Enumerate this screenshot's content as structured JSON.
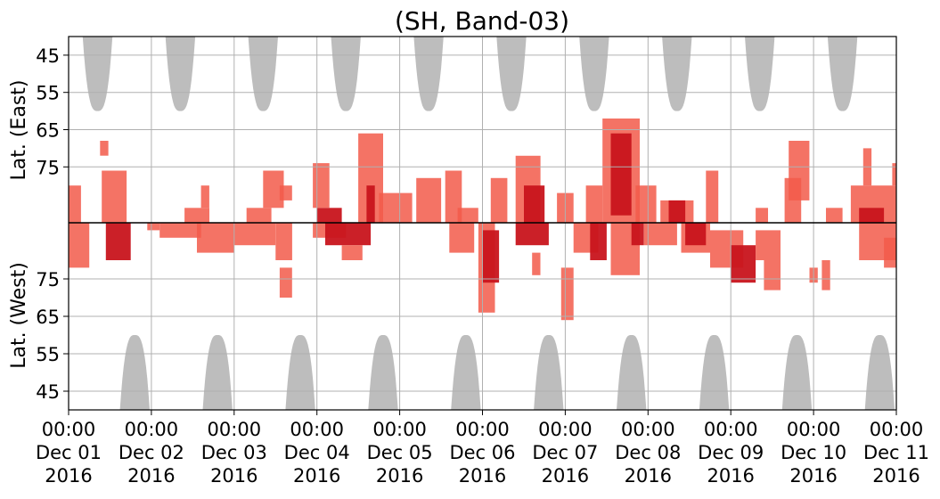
{
  "chart_data": {
    "type": "heatmap",
    "title": "(SH, Band-03)",
    "xlabel": "",
    "ylabel_top": "Lat. (East)",
    "ylabel_bottom": "Lat. (West)",
    "x_range": [
      "2016-12-01 00:00",
      "2016-12-11 00:00"
    ],
    "x_ticks": [
      {
        "time": "00:00",
        "date": "Dec 01",
        "year": "2016"
      },
      {
        "time": "00:00",
        "date": "Dec 02",
        "year": "2016"
      },
      {
        "time": "00:00",
        "date": "Dec 03",
        "year": "2016"
      },
      {
        "time": "00:00",
        "date": "Dec 04",
        "year": "2016"
      },
      {
        "time": "00:00",
        "date": "Dec 05",
        "year": "2016"
      },
      {
        "time": "00:00",
        "date": "Dec 06",
        "year": "2016"
      },
      {
        "time": "00:00",
        "date": "Dec 07",
        "year": "2016"
      },
      {
        "time": "00:00",
        "date": "Dec 08",
        "year": "2016"
      },
      {
        "time": "00:00",
        "date": "Dec 09",
        "year": "2016"
      },
      {
        "time": "00:00",
        "date": "Dec 10",
        "year": "2016"
      },
      {
        "time": "00:00",
        "date": "Dec 11",
        "year": "2016"
      }
    ],
    "y_ticks_top": [
      "45",
      "55",
      "65",
      "75"
    ],
    "y_ticks_bottom": [
      "75",
      "65",
      "55",
      "45"
    ],
    "y_range_top_lat": [
      90,
      40
    ],
    "y_range_bottom_lat": [
      90,
      40
    ],
    "grid": true,
    "colors": {
      "daylight": "#bdbdbd",
      "activity_light": "#f25a4a",
      "activity_dark": "#c8141c",
      "divider": "#000000",
      "grid": "#b0b0b0"
    },
    "daylight_lobes_east": [
      {
        "center_day": 0.35,
        "half_width_days": 0.18,
        "min_lat": 60
      },
      {
        "center_day": 1.35,
        "half_width_days": 0.18,
        "min_lat": 60
      },
      {
        "center_day": 2.35,
        "half_width_days": 0.18,
        "min_lat": 60
      },
      {
        "center_day": 3.35,
        "half_width_days": 0.18,
        "min_lat": 60
      },
      {
        "center_day": 4.35,
        "half_width_days": 0.18,
        "min_lat": 60
      },
      {
        "center_day": 5.35,
        "half_width_days": 0.18,
        "min_lat": 60
      },
      {
        "center_day": 6.35,
        "half_width_days": 0.18,
        "min_lat": 60
      },
      {
        "center_day": 7.35,
        "half_width_days": 0.18,
        "min_lat": 60
      },
      {
        "center_day": 8.35,
        "half_width_days": 0.18,
        "min_lat": 60
      },
      {
        "center_day": 9.35,
        "half_width_days": 0.18,
        "min_lat": 60
      }
    ],
    "daylight_lobes_west": [
      {
        "center_day": 0.8,
        "half_width_days": 0.18,
        "min_lat": 60
      },
      {
        "center_day": 1.8,
        "half_width_days": 0.18,
        "min_lat": 60
      },
      {
        "center_day": 2.8,
        "half_width_days": 0.18,
        "min_lat": 60
      },
      {
        "center_day": 3.8,
        "half_width_days": 0.18,
        "min_lat": 60
      },
      {
        "center_day": 4.8,
        "half_width_days": 0.18,
        "min_lat": 60
      },
      {
        "center_day": 5.8,
        "half_width_days": 0.18,
        "min_lat": 60
      },
      {
        "center_day": 6.8,
        "half_width_days": 0.18,
        "min_lat": 60
      },
      {
        "center_day": 7.8,
        "half_width_days": 0.18,
        "min_lat": 60
      },
      {
        "center_day": 8.8,
        "half_width_days": 0.18,
        "min_lat": 60
      },
      {
        "center_day": 9.8,
        "half_width_days": 0.18,
        "min_lat": 60
      }
    ],
    "activity_patches": [
      {
        "side": "east",
        "day_start": 0.0,
        "day_end": 0.15,
        "lat_min": 80,
        "lat_max": 90,
        "intensity": "light"
      },
      {
        "side": "west",
        "day_start": 0.0,
        "day_end": 0.25,
        "lat_min": 78,
        "lat_max": 90,
        "intensity": "light"
      },
      {
        "side": "east",
        "day_start": 0.38,
        "day_end": 0.48,
        "lat_min": 68,
        "lat_max": 72,
        "intensity": "light"
      },
      {
        "side": "east",
        "day_start": 0.4,
        "day_end": 0.7,
        "lat_min": 76,
        "lat_max": 90,
        "intensity": "light"
      },
      {
        "side": "west",
        "day_start": 0.45,
        "day_end": 0.75,
        "lat_min": 80,
        "lat_max": 90,
        "intensity": "dark"
      },
      {
        "side": "west",
        "day_start": 0.95,
        "day_end": 1.1,
        "lat_min": 88,
        "lat_max": 90,
        "intensity": "light"
      },
      {
        "side": "west",
        "day_start": 1.1,
        "day_end": 1.6,
        "lat_min": 86,
        "lat_max": 90,
        "intensity": "light"
      },
      {
        "side": "east",
        "day_start": 1.4,
        "day_end": 1.7,
        "lat_min": 86,
        "lat_max": 90,
        "intensity": "light"
      },
      {
        "side": "east",
        "day_start": 1.6,
        "day_end": 1.7,
        "lat_min": 80,
        "lat_max": 86,
        "intensity": "light"
      },
      {
        "side": "west",
        "day_start": 1.55,
        "day_end": 2.0,
        "lat_min": 82,
        "lat_max": 90,
        "intensity": "light"
      },
      {
        "side": "west",
        "day_start": 2.0,
        "day_end": 2.5,
        "lat_min": 84,
        "lat_max": 90,
        "intensity": "light"
      },
      {
        "side": "east",
        "day_start": 2.15,
        "day_end": 2.45,
        "lat_min": 86,
        "lat_max": 90,
        "intensity": "light"
      },
      {
        "side": "east",
        "day_start": 2.35,
        "day_end": 2.6,
        "lat_min": 76,
        "lat_max": 86,
        "intensity": "light"
      },
      {
        "side": "east",
        "day_start": 2.55,
        "day_end": 2.7,
        "lat_min": 80,
        "lat_max": 84,
        "intensity": "light"
      },
      {
        "side": "west",
        "day_start": 2.5,
        "day_end": 2.7,
        "lat_min": 80,
        "lat_max": 90,
        "intensity": "light"
      },
      {
        "side": "west",
        "day_start": 2.55,
        "day_end": 2.7,
        "lat_min": 70,
        "lat_max": 78,
        "intensity": "light"
      },
      {
        "side": "west",
        "day_start": 2.95,
        "day_end": 3.35,
        "lat_min": 86,
        "lat_max": 90,
        "intensity": "light"
      },
      {
        "side": "east",
        "day_start": 3.0,
        "day_end": 3.3,
        "lat_min": 86,
        "lat_max": 90,
        "intensity": "dark"
      },
      {
        "side": "east",
        "day_start": 2.95,
        "day_end": 3.15,
        "lat_min": 74,
        "lat_max": 86,
        "intensity": "light"
      },
      {
        "side": "west",
        "day_start": 3.1,
        "day_end": 3.65,
        "lat_min": 84,
        "lat_max": 90,
        "intensity": "dark"
      },
      {
        "side": "west",
        "day_start": 3.3,
        "day_end": 3.55,
        "lat_min": 80,
        "lat_max": 84,
        "intensity": "light"
      },
      {
        "side": "east",
        "day_start": 3.5,
        "day_end": 3.8,
        "lat_min": 66,
        "lat_max": 90,
        "intensity": "light"
      },
      {
        "side": "east",
        "day_start": 3.6,
        "day_end": 3.7,
        "lat_min": 80,
        "lat_max": 90,
        "intensity": "dark"
      },
      {
        "side": "east",
        "day_start": 3.75,
        "day_end": 4.15,
        "lat_min": 82,
        "lat_max": 90,
        "intensity": "light"
      },
      {
        "side": "east",
        "day_start": 4.2,
        "day_end": 4.5,
        "lat_min": 78,
        "lat_max": 90,
        "intensity": "light"
      },
      {
        "side": "east",
        "day_start": 4.55,
        "day_end": 4.75,
        "lat_min": 76,
        "lat_max": 90,
        "intensity": "light"
      },
      {
        "side": "east",
        "day_start": 4.7,
        "day_end": 4.95,
        "lat_min": 86,
        "lat_max": 90,
        "intensity": "light"
      },
      {
        "side": "west",
        "day_start": 4.6,
        "day_end": 4.9,
        "lat_min": 82,
        "lat_max": 90,
        "intensity": "light"
      },
      {
        "side": "west",
        "day_start": 4.95,
        "day_end": 5.15,
        "lat_min": 66,
        "lat_max": 90,
        "intensity": "light"
      },
      {
        "side": "west",
        "day_start": 5.0,
        "day_end": 5.2,
        "lat_min": 74,
        "lat_max": 88,
        "intensity": "dark"
      },
      {
        "side": "east",
        "day_start": 5.1,
        "day_end": 5.3,
        "lat_min": 78,
        "lat_max": 90,
        "intensity": "light"
      },
      {
        "side": "east",
        "day_start": 5.4,
        "day_end": 5.7,
        "lat_min": 72,
        "lat_max": 90,
        "intensity": "light"
      },
      {
        "side": "east",
        "day_start": 5.5,
        "day_end": 5.75,
        "lat_min": 80,
        "lat_max": 90,
        "intensity": "dark"
      },
      {
        "side": "west",
        "day_start": 5.4,
        "day_end": 5.8,
        "lat_min": 84,
        "lat_max": 90,
        "intensity": "dark"
      },
      {
        "side": "west",
        "day_start": 5.6,
        "day_end": 5.7,
        "lat_min": 76,
        "lat_max": 82,
        "intensity": "light"
      },
      {
        "side": "east",
        "day_start": 5.9,
        "day_end": 6.1,
        "lat_min": 82,
        "lat_max": 90,
        "intensity": "light"
      },
      {
        "side": "west",
        "day_start": 5.95,
        "day_end": 6.1,
        "lat_min": 64,
        "lat_max": 78,
        "intensity": "light"
      },
      {
        "side": "west",
        "day_start": 6.1,
        "day_end": 6.4,
        "lat_min": 82,
        "lat_max": 90,
        "intensity": "light"
      },
      {
        "side": "east",
        "day_start": 6.25,
        "day_end": 6.45,
        "lat_min": 80,
        "lat_max": 90,
        "intensity": "light"
      },
      {
        "side": "west",
        "day_start": 6.3,
        "day_end": 6.5,
        "lat_min": 80,
        "lat_max": 90,
        "intensity": "dark"
      },
      {
        "side": "east",
        "day_start": 6.45,
        "day_end": 6.9,
        "lat_min": 62,
        "lat_max": 90,
        "intensity": "light"
      },
      {
        "side": "east",
        "day_start": 6.55,
        "day_end": 6.8,
        "lat_min": 66,
        "lat_max": 88,
        "intensity": "dark"
      },
      {
        "side": "west",
        "day_start": 6.55,
        "day_end": 6.9,
        "lat_min": 76,
        "lat_max": 90,
        "intensity": "light"
      },
      {
        "side": "west",
        "day_start": 6.8,
        "day_end": 6.95,
        "lat_min": 84,
        "lat_max": 90,
        "intensity": "dark"
      },
      {
        "side": "east",
        "day_start": 6.85,
        "day_end": 7.1,
        "lat_min": 80,
        "lat_max": 90,
        "intensity": "light"
      },
      {
        "side": "west",
        "day_start": 6.95,
        "day_end": 7.35,
        "lat_min": 84,
        "lat_max": 90,
        "intensity": "light"
      },
      {
        "side": "east",
        "day_start": 7.15,
        "day_end": 7.55,
        "lat_min": 84,
        "lat_max": 90,
        "intensity": "light"
      },
      {
        "side": "east",
        "day_start": 7.25,
        "day_end": 7.45,
        "lat_min": 84,
        "lat_max": 90,
        "intensity": "dark"
      },
      {
        "side": "east",
        "day_start": 7.7,
        "day_end": 7.85,
        "lat_min": 76,
        "lat_max": 90,
        "intensity": "light"
      },
      {
        "side": "west",
        "day_start": 7.4,
        "day_end": 7.75,
        "lat_min": 82,
        "lat_max": 90,
        "intensity": "light"
      },
      {
        "side": "west",
        "day_start": 7.45,
        "day_end": 7.7,
        "lat_min": 84,
        "lat_max": 90,
        "intensity": "dark"
      },
      {
        "side": "west",
        "day_start": 7.75,
        "day_end": 8.15,
        "lat_min": 78,
        "lat_max": 88,
        "intensity": "light"
      },
      {
        "side": "west",
        "day_start": 8.0,
        "day_end": 8.3,
        "lat_min": 74,
        "lat_max": 84,
        "intensity": "dark"
      },
      {
        "side": "east",
        "day_start": 8.3,
        "day_end": 8.45,
        "lat_min": 86,
        "lat_max": 90,
        "intensity": "light"
      },
      {
        "side": "west",
        "day_start": 8.3,
        "day_end": 8.6,
        "lat_min": 80,
        "lat_max": 88,
        "intensity": "light"
      },
      {
        "side": "west",
        "day_start": 8.4,
        "day_end": 8.6,
        "lat_min": 72,
        "lat_max": 80,
        "intensity": "light"
      },
      {
        "side": "east",
        "day_start": 8.7,
        "day_end": 8.95,
        "lat_min": 68,
        "lat_max": 84,
        "intensity": "light"
      },
      {
        "side": "east",
        "day_start": 8.65,
        "day_end": 8.85,
        "lat_min": 78,
        "lat_max": 90,
        "intensity": "light"
      },
      {
        "side": "west",
        "day_start": 8.95,
        "day_end": 9.05,
        "lat_min": 74,
        "lat_max": 78,
        "intensity": "light"
      },
      {
        "side": "east",
        "day_start": 9.15,
        "day_end": 9.35,
        "lat_min": 86,
        "lat_max": 90,
        "intensity": "light"
      },
      {
        "side": "west",
        "day_start": 9.1,
        "day_end": 9.2,
        "lat_min": 72,
        "lat_max": 80,
        "intensity": "light"
      },
      {
        "side": "east",
        "day_start": 9.45,
        "day_end": 10.0,
        "lat_min": 80,
        "lat_max": 90,
        "intensity": "light"
      },
      {
        "side": "east",
        "day_start": 9.55,
        "day_end": 9.85,
        "lat_min": 86,
        "lat_max": 90,
        "intensity": "dark"
      },
      {
        "side": "east",
        "day_start": 9.6,
        "day_end": 9.7,
        "lat_min": 70,
        "lat_max": 80,
        "intensity": "light"
      },
      {
        "side": "west",
        "day_start": 9.55,
        "day_end": 10.0,
        "lat_min": 80,
        "lat_max": 90,
        "intensity": "light"
      },
      {
        "side": "west",
        "day_start": 9.85,
        "day_end": 10.0,
        "lat_min": 78,
        "lat_max": 86,
        "intensity": "light"
      },
      {
        "side": "east",
        "day_start": 9.95,
        "day_end": 10.0,
        "lat_min": 74,
        "lat_max": 80,
        "intensity": "light"
      }
    ]
  }
}
